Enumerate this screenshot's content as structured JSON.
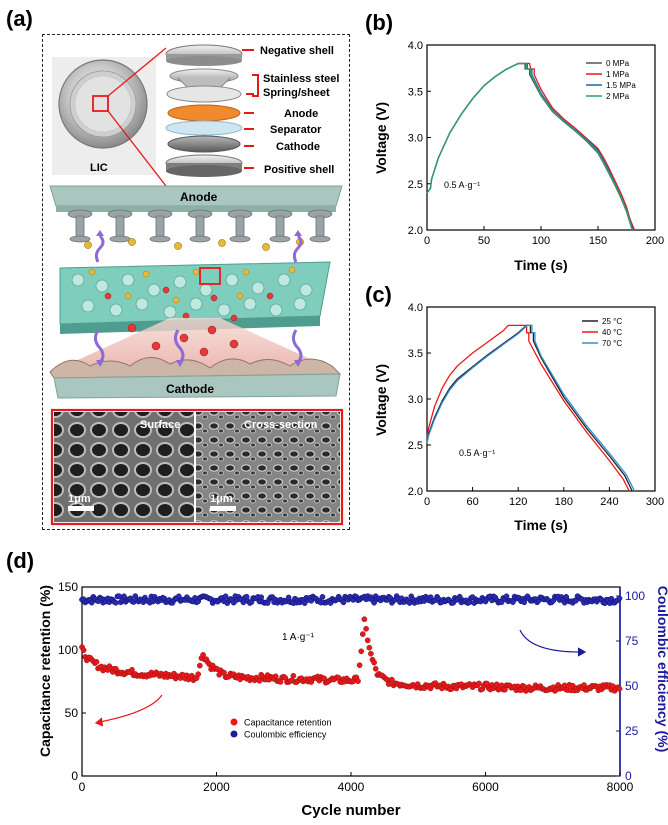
{
  "panels": {
    "a": "(a)",
    "b": "(b)",
    "c": "(c)",
    "d": "(d)"
  },
  "schematic": {
    "coin_label": "LIC",
    "stack_labels": [
      "Negative shell",
      "Stainless steel",
      "Spring/sheet",
      "Anode",
      "Separator",
      "Cathode",
      "Positive shell"
    ],
    "anode_label": "Anode",
    "cathode_label": "Cathode",
    "sem_surface": "Surface",
    "sem_cross": "Cross-section",
    "scale_bar": "1μm",
    "colors": {
      "red": "#e8191b",
      "anode_bar": "#a9c6bf",
      "separator": "#cfe6f2",
      "anode_disc": "#f08a2d"
    }
  },
  "chart_data": [
    {
      "id": "b",
      "type": "line",
      "xlabel": "Time (s)",
      "ylabel": "Voltage (V)",
      "xlim": [
        0,
        200
      ],
      "ylim": [
        2.0,
        4.0
      ],
      "xticks": [
        0,
        50,
        100,
        150,
        200
      ],
      "yticks": [
        2.0,
        2.5,
        3.0,
        3.5,
        4.0
      ],
      "annotation": "0.5 A·g⁻¹",
      "legend_position": "top-right",
      "series": [
        {
          "name": "0 MPa",
          "color": "#555555",
          "x": [
            0,
            3,
            4,
            10,
            20,
            30,
            40,
            50,
            60,
            70,
            80,
            84,
            86,
            86,
            90,
            90,
            100,
            110,
            120,
            130,
            140,
            150,
            155,
            160,
            165,
            170,
            175,
            178,
            180
          ],
          "y": [
            2.4,
            2.45,
            2.55,
            2.78,
            3.05,
            3.25,
            3.42,
            3.56,
            3.66,
            3.74,
            3.8,
            3.8,
            3.8,
            3.74,
            3.74,
            3.68,
            3.45,
            3.28,
            3.17,
            3.07,
            2.96,
            2.83,
            2.72,
            2.6,
            2.48,
            2.35,
            2.2,
            2.08,
            2.0
          ]
        },
        {
          "name": "1 MPa",
          "color": "#e8191b",
          "x": [
            0,
            3,
            4,
            10,
            20,
            30,
            40,
            50,
            60,
            70,
            80,
            86,
            90,
            91,
            94,
            94,
            100,
            110,
            120,
            130,
            140,
            150,
            155,
            160,
            165,
            170,
            175,
            178,
            182
          ],
          "y": [
            2.4,
            2.45,
            2.55,
            2.78,
            3.05,
            3.25,
            3.42,
            3.56,
            3.66,
            3.74,
            3.8,
            3.8,
            3.8,
            3.74,
            3.74,
            3.68,
            3.52,
            3.32,
            3.2,
            3.1,
            2.99,
            2.88,
            2.78,
            2.66,
            2.53,
            2.4,
            2.25,
            2.12,
            2.0
          ]
        },
        {
          "name": "1.5 MPa",
          "color": "#1f64b4",
          "x": [
            0,
            3,
            4,
            10,
            20,
            30,
            40,
            50,
            60,
            70,
            80,
            85,
            88,
            88,
            92,
            92,
            100,
            110,
            120,
            130,
            140,
            150,
            155,
            160,
            165,
            170,
            175,
            178,
            181
          ],
          "y": [
            2.4,
            2.45,
            2.55,
            2.78,
            3.05,
            3.25,
            3.42,
            3.56,
            3.66,
            3.74,
            3.8,
            3.8,
            3.8,
            3.74,
            3.74,
            3.68,
            3.48,
            3.3,
            3.18,
            3.08,
            2.98,
            2.86,
            2.75,
            2.63,
            2.5,
            2.37,
            2.22,
            2.1,
            2.0
          ]
        },
        {
          "name": "2 MPa",
          "color": "#2aa36a",
          "x": [
            0,
            3,
            4,
            10,
            20,
            30,
            40,
            50,
            60,
            70,
            80,
            84,
            87,
            87,
            91,
            91,
            100,
            110,
            120,
            130,
            140,
            150,
            155,
            160,
            165,
            170,
            175,
            178,
            180
          ],
          "y": [
            2.4,
            2.45,
            2.55,
            2.78,
            3.05,
            3.25,
            3.42,
            3.56,
            3.66,
            3.74,
            3.8,
            3.8,
            3.8,
            3.74,
            3.74,
            3.68,
            3.46,
            3.29,
            3.17,
            3.07,
            2.97,
            2.84,
            2.73,
            2.61,
            2.49,
            2.36,
            2.21,
            2.09,
            2.0
          ]
        }
      ]
    },
    {
      "id": "c",
      "type": "line",
      "xlabel": "Time (s)",
      "ylabel": "Voltage (V)",
      "xlim": [
        0,
        300
      ],
      "ylim": [
        2.0,
        4.0
      ],
      "xticks": [
        0,
        60,
        120,
        180,
        240,
        300
      ],
      "yticks": [
        2.0,
        2.5,
        3.0,
        3.5,
        4.0
      ],
      "annotation": "0.5 A·g⁻¹",
      "legend_position": "top-right",
      "series": [
        {
          "name": "25 °C",
          "color": "#222222",
          "x": [
            0,
            2,
            10,
            20,
            30,
            40,
            60,
            80,
            100,
            120,
            131,
            136,
            136,
            140,
            140,
            150,
            180,
            210,
            240,
            260,
            270
          ],
          "y": [
            2.55,
            2.62,
            2.8,
            2.98,
            3.12,
            3.22,
            3.35,
            3.48,
            3.6,
            3.72,
            3.8,
            3.8,
            3.72,
            3.72,
            3.63,
            3.45,
            3.02,
            2.68,
            2.38,
            2.17,
            2.0
          ]
        },
        {
          "name": "40 °C",
          "color": "#e8191b",
          "x": [
            0,
            2,
            10,
            20,
            30,
            40,
            60,
            80,
            100,
            107,
            126,
            131,
            131,
            134,
            134,
            150,
            180,
            210,
            240,
            258,
            266
          ],
          "y": [
            2.58,
            2.68,
            2.92,
            3.12,
            3.26,
            3.36,
            3.5,
            3.62,
            3.74,
            3.8,
            3.8,
            3.8,
            3.72,
            3.72,
            3.63,
            3.38,
            2.98,
            2.64,
            2.33,
            2.13,
            2.0
          ]
        },
        {
          "name": "70 °C",
          "color": "#2f8fd6",
          "x": [
            0,
            2,
            10,
            20,
            30,
            40,
            60,
            80,
            100,
            120,
            132,
            138,
            138,
            142,
            142,
            150,
            180,
            210,
            240,
            262,
            273
          ],
          "y": [
            2.52,
            2.6,
            2.78,
            2.96,
            3.1,
            3.2,
            3.34,
            3.47,
            3.59,
            3.71,
            3.8,
            3.8,
            3.72,
            3.72,
            3.63,
            3.47,
            3.05,
            2.71,
            2.41,
            2.18,
            2.0
          ]
        }
      ]
    },
    {
      "id": "d",
      "type": "scatter",
      "xlabel": "Cycle number",
      "ylabel": "Capacitance retention (%)",
      "y2label": "Coulombic efficiency (%)",
      "xlim": [
        0,
        8000
      ],
      "ylim": [
        0,
        150
      ],
      "y2lim": [
        0,
        105
      ],
      "xticks": [
        0,
        2000,
        4000,
        6000,
        8000
      ],
      "yticks": [
        0,
        50,
        100,
        150
      ],
      "y2ticks": [
        0,
        25,
        50,
        75,
        100
      ],
      "annotation": "1 A·g⁻¹",
      "legend_position": "center",
      "series": [
        {
          "name": "Capacitance retention",
          "color": "#e8191b",
          "axis": "left",
          "x": [
            0,
            100,
            300,
            600,
            900,
            1200,
            1500,
            1700,
            1800,
            1900,
            2100,
            2400,
            2700,
            3000,
            3400,
            3800,
            4100,
            4200,
            4300,
            4400,
            4600,
            5000,
            5500,
            6000,
            6500,
            7000,
            7500,
            8000
          ],
          "y": [
            100,
            92,
            86,
            83,
            81,
            80,
            79,
            78,
            97,
            88,
            80,
            78,
            78,
            77,
            77,
            76,
            76,
            122,
            95,
            80,
            74,
            72,
            71,
            71,
            70,
            70,
            70,
            70
          ]
        },
        {
          "name": "Coulombic efficiency",
          "color": "#1a1a9e",
          "axis": "right",
          "x": [
            0,
            1000,
            2000,
            3000,
            4000,
            5000,
            6000,
            7000,
            8000
          ],
          "y": [
            98,
            98,
            98,
            98,
            98,
            98,
            98,
            98,
            98
          ]
        }
      ]
    }
  ]
}
